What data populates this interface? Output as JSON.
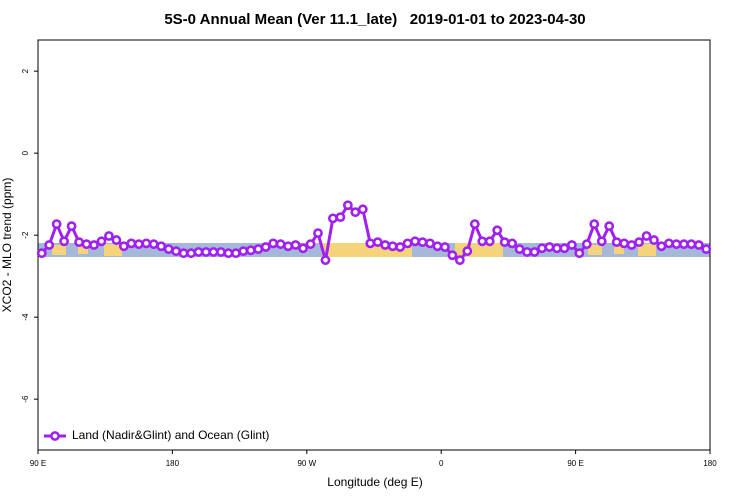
{
  "chart_data": {
    "type": "line",
    "title": "5S-0 Annual Mean (Ver 11.1_late)   2019-01-01 to 2023-04-30",
    "xlabel": "Longitude (deg E)",
    "ylabel": "XCO2 - MLO trend (ppm)",
    "x": [
      92.5,
      97.5,
      102.5,
      107.5,
      112.5,
      117.5,
      122.5,
      127.5,
      132.5,
      137.5,
      142.5,
      147.5,
      152.5,
      157.5,
      162.5,
      167.5,
      172.5,
      177.5,
      182.5,
      187.5,
      192.5,
      197.5,
      202.5,
      207.5,
      212.5,
      217.5,
      222.5,
      227.5,
      232.5,
      237.5,
      242.5,
      247.5,
      252.5,
      257.5,
      262.5,
      267.5,
      272.5,
      277.5,
      282.5,
      287.5,
      292.5,
      297.5,
      302.5,
      307.5,
      312.5,
      317.5,
      322.5,
      327.5,
      332.5,
      337.5,
      342.5,
      347.5,
      352.5,
      357.5,
      362.5,
      367.5,
      372.5,
      377.5,
      382.5,
      387.5,
      392.5,
      397.5,
      402.5,
      407.5,
      412.5,
      417.5,
      422.5,
      427.5,
      432.5,
      437.5,
      442.5,
      447.5,
      452.5,
      457.5,
      462.5,
      467.5,
      472.5,
      477.5,
      482.5,
      487.5,
      492.5,
      497.5,
      502.5,
      507.5,
      512.5,
      517.5,
      522.5,
      527.5,
      532.5,
      537.5
    ],
    "series": [
      {
        "name": "Land (Nadir&Glint) and Ocean (Glint)",
        "color": "#a020f0",
        "values": [
          -2.44,
          -2.24,
          -1.73,
          -2.15,
          -1.78,
          -2.17,
          -2.22,
          -2.24,
          -2.15,
          -2.02,
          -2.12,
          -2.27,
          -2.2,
          -2.22,
          -2.2,
          -2.22,
          -2.27,
          -2.34,
          -2.39,
          -2.44,
          -2.44,
          -2.41,
          -2.41,
          -2.41,
          -2.41,
          -2.44,
          -2.44,
          -2.39,
          -2.37,
          -2.34,
          -2.29,
          -2.2,
          -2.22,
          -2.27,
          -2.24,
          -2.32,
          -2.22,
          -1.95,
          -2.61,
          -1.59,
          -1.56,
          -1.27,
          -1.44,
          -1.37,
          -2.2,
          -2.17,
          -2.24,
          -2.27,
          -2.29,
          -2.2,
          -2.15,
          -2.17,
          -2.2,
          -2.27,
          -2.29,
          -2.49,
          -2.61,
          -2.39,
          -1.73,
          -2.15,
          -2.15,
          -1.88,
          -2.17,
          -2.2,
          -2.34,
          -2.41,
          -2.41,
          -2.32,
          -2.29,
          -2.32,
          -2.32,
          -2.24,
          -2.44,
          -2.22,
          -1.73,
          -2.15,
          -1.78,
          -2.17,
          -2.2,
          -2.24,
          -2.17,
          -2.02,
          -2.12,
          -2.27,
          -2.2,
          -2.22,
          -2.22,
          -2.22,
          -2.24,
          -2.34
        ]
      }
    ],
    "xlim": [
      90,
      540
    ],
    "xticks": [
      {
        "value": 90,
        "label": "90 E"
      },
      180,
      {
        "value": 270,
        "label": "90 W"
      },
      {
        "value": 360,
        "label": "0"
      },
      {
        "value": 450,
        "label": "90 E"
      },
      {
        "value": 540,
        "label": "180"
      }
    ],
    "ylim": [
      -7.24,
      2.76
    ],
    "yticks": [
      2,
      0,
      -2,
      -4,
      -6
    ],
    "legend": "bottom left"
  }
}
